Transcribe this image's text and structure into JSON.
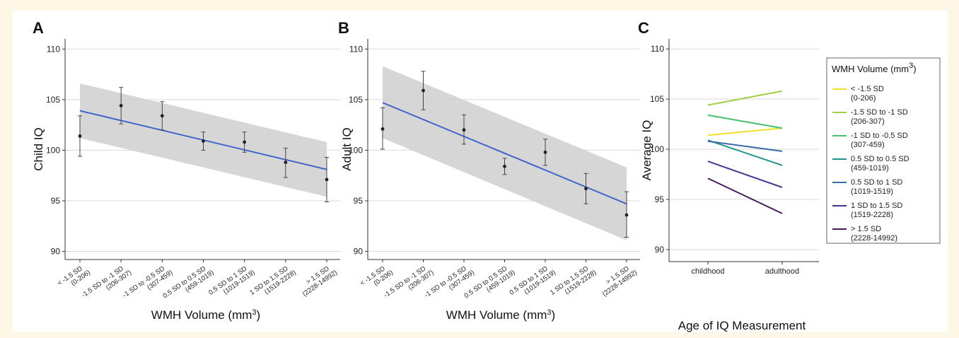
{
  "chart_data": [
    {
      "panel": "A",
      "type": "scatter",
      "categories": [
        [
          "< -1.5 SD",
          "(0-206)"
        ],
        [
          "-1.5 SD to -1 SD",
          "(206-307)"
        ],
        [
          "-1 SD to -0.5 SD",
          "(307-459)"
        ],
        [
          "0.5 SD to 0.5 SD",
          "(459-1019)"
        ],
        [
          "0.5 SD to 1 SD",
          "(1019-1519)"
        ],
        [
          "1 SD to 1.5 SD",
          "(1519-2228)"
        ],
        [
          "> 1.5 SD",
          "(2228-14992)"
        ]
      ],
      "values": [
        101.4,
        104.4,
        103.4,
        100.9,
        100.8,
        98.8,
        97.1
      ],
      "err_low": [
        99.4,
        102.6,
        102.0,
        100.0,
        99.8,
        97.3,
        94.9
      ],
      "err_high": [
        103.4,
        106.2,
        104.8,
        101.8,
        101.8,
        100.2,
        99.3
      ],
      "fit": [
        103.9,
        98.1
      ],
      "band_low": [
        101.2,
        95.4
      ],
      "band_high": [
        106.6,
        100.8
      ],
      "ylabel": "Child IQ",
      "xlabel": "WMH Volume (mm",
      "xlabel_sup": "3",
      "xlabel_end": ")",
      "yticks": [
        90,
        95,
        100,
        105,
        110
      ],
      "ylim": [
        89.2,
        111
      ],
      "grid": true
    },
    {
      "panel": "B",
      "type": "scatter",
      "categories": [
        [
          "< -1.5 SD",
          "(0-206)"
        ],
        [
          "-1.5 SD to -1 SD",
          "(206-307)"
        ],
        [
          "-1 SD to -0.5 SD",
          "(307-459)"
        ],
        [
          "0.5 SD to 0.5 SD",
          "(459-1019)"
        ],
        [
          "0.5 SD to 1 SD",
          "(1019-1519)"
        ],
        [
          "1 SD to 1.5 SD",
          "(1519-2228)"
        ],
        [
          "> 1.5 SD",
          "(2228-14992)"
        ]
      ],
      "values": [
        102.1,
        105.9,
        102.0,
        98.4,
        99.8,
        96.2,
        93.6
      ],
      "err_low": [
        100.1,
        104.0,
        100.6,
        97.6,
        98.5,
        94.7,
        91.4
      ],
      "err_high": [
        104.2,
        107.8,
        103.5,
        99.2,
        101.1,
        97.7,
        95.9
      ],
      "fit": [
        104.7,
        94.7
      ],
      "band_low": [
        101.2,
        91.1
      ],
      "band_high": [
        108.3,
        98.3
      ],
      "ylabel": "Adult IQ",
      "xlabel": "WMH Volume (mm",
      "xlabel_sup": "3",
      "xlabel_end": ")",
      "yticks": [
        90,
        95,
        100,
        105,
        110
      ],
      "ylim": [
        89.2,
        111
      ],
      "grid": true
    },
    {
      "panel": "C",
      "type": "line",
      "categories": [
        "childhood",
        "adulthood"
      ],
      "series": [
        {
          "name": "< -1.5 SD",
          "range": "(0-206)",
          "values": [
            101.4,
            102.1
          ],
          "color": "#f0e02a"
        },
        {
          "name": "-1.5 SD to -1 SD",
          "range": "(206-307)",
          "values": [
            104.4,
            105.8
          ],
          "color": "#9ed04a"
        },
        {
          "name": "-1 SD to -0.5 SD",
          "range": "(307-459)",
          "values": [
            103.4,
            102.1
          ],
          "color": "#46c06a"
        },
        {
          "name": "0.5 SD to 0.5 SD",
          "range": "(459-1019)",
          "values": [
            100.9,
            98.4
          ],
          "color": "#21918c"
        },
        {
          "name": "0.5 SD to 1 SD",
          "range": "(1019-1519)",
          "values": [
            100.8,
            99.8
          ],
          "color": "#3a6aa8"
        },
        {
          "name": "1 SD to 1.5 SD",
          "range": "(1519-2228)",
          "values": [
            98.8,
            96.2
          ],
          "color": "#48348e"
        },
        {
          "name": "> 1.5 SD",
          "range": "(2228-14992)",
          "values": [
            97.1,
            93.6
          ],
          "color": "#441a5a"
        }
      ],
      "ylabel": "Average IQ",
      "xlabel": "Age of IQ Measurement",
      "yticks": [
        90,
        95,
        100,
        105,
        110
      ],
      "ylim": [
        88.8,
        111
      ],
      "legend_title": "WMH Volume (mm",
      "legend_title_sup": "3",
      "legend_title_end": ")",
      "legend_position": "right",
      "grid": true
    }
  ],
  "style": {
    "fit_color": "#4466cc",
    "band_color": "#cfcfcf",
    "point_color": "#222222",
    "grid_color": "#d9d9d9"
  }
}
